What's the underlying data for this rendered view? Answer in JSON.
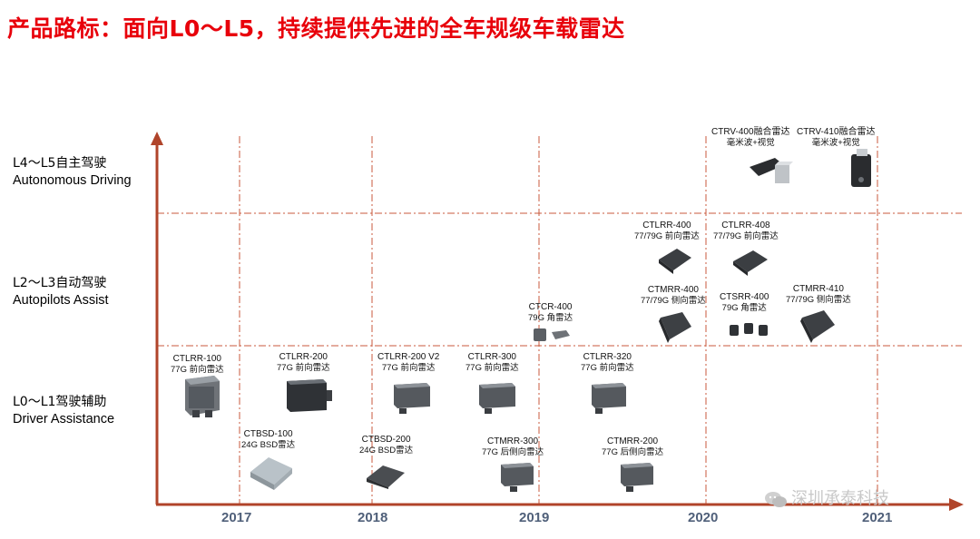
{
  "title": "产品路标：面向L0～L5，持续提供先进的全车规级车载雷达",
  "levels": [
    {
      "cn": "L4～L5自主驾驶",
      "en": "Autonomous Driving"
    },
    {
      "cn": "L2～L3自动驾驶",
      "en": "Autopilots Assist"
    },
    {
      "cn": "L0～L1驾驶辅助",
      "en": "Driver Assistance"
    }
  ],
  "years": [
    "2017",
    "2018",
    "2019",
    "2020",
    "2021"
  ],
  "products": [
    {
      "name": "CTLRR-100",
      "desc": "77G 前向雷达"
    },
    {
      "name": "CTLRR-200",
      "desc": "77G 前向雷达"
    },
    {
      "name": "CTLRR-200 V2",
      "desc": "77G 前向雷达"
    },
    {
      "name": "CTLRR-300",
      "desc": "77G 前向雷达"
    },
    {
      "name": "CTLRR-320",
      "desc": "77G 前向雷达"
    },
    {
      "name": "CTBSD-100",
      "desc": "24G BSD雷达"
    },
    {
      "name": "CTBSD-200",
      "desc": "24G BSD雷达"
    },
    {
      "name": "CTMRR-300",
      "desc": "77G 后侧向雷达"
    },
    {
      "name": "CTMRR-200",
      "desc": "77G 后侧向雷达"
    },
    {
      "name": "CTCR-400",
      "desc": "79G 角雷达"
    },
    {
      "name": "CTLRR-400",
      "desc": "77/79G 前向雷达"
    },
    {
      "name": "CTLRR-408",
      "desc": "77/79G 前向雷达"
    },
    {
      "name": "CTMRR-400",
      "desc": "77/79G 侧向雷达"
    },
    {
      "name": "CTSRR-400",
      "desc": "79G 角雷达"
    },
    {
      "name": "CTMRR-410",
      "desc": "77/79G 侧向雷达"
    },
    {
      "name": "CTRV-400融合雷达",
      "desc": "毫米波+视觉"
    },
    {
      "name": "CTRV-410融合雷达",
      "desc": "毫米波+视觉"
    }
  ],
  "watermark": "深圳承泰科技",
  "colors": {
    "title": "#e8000b",
    "axis": "#b0442a",
    "grid": "#c0392b",
    "year": "#50607a"
  }
}
